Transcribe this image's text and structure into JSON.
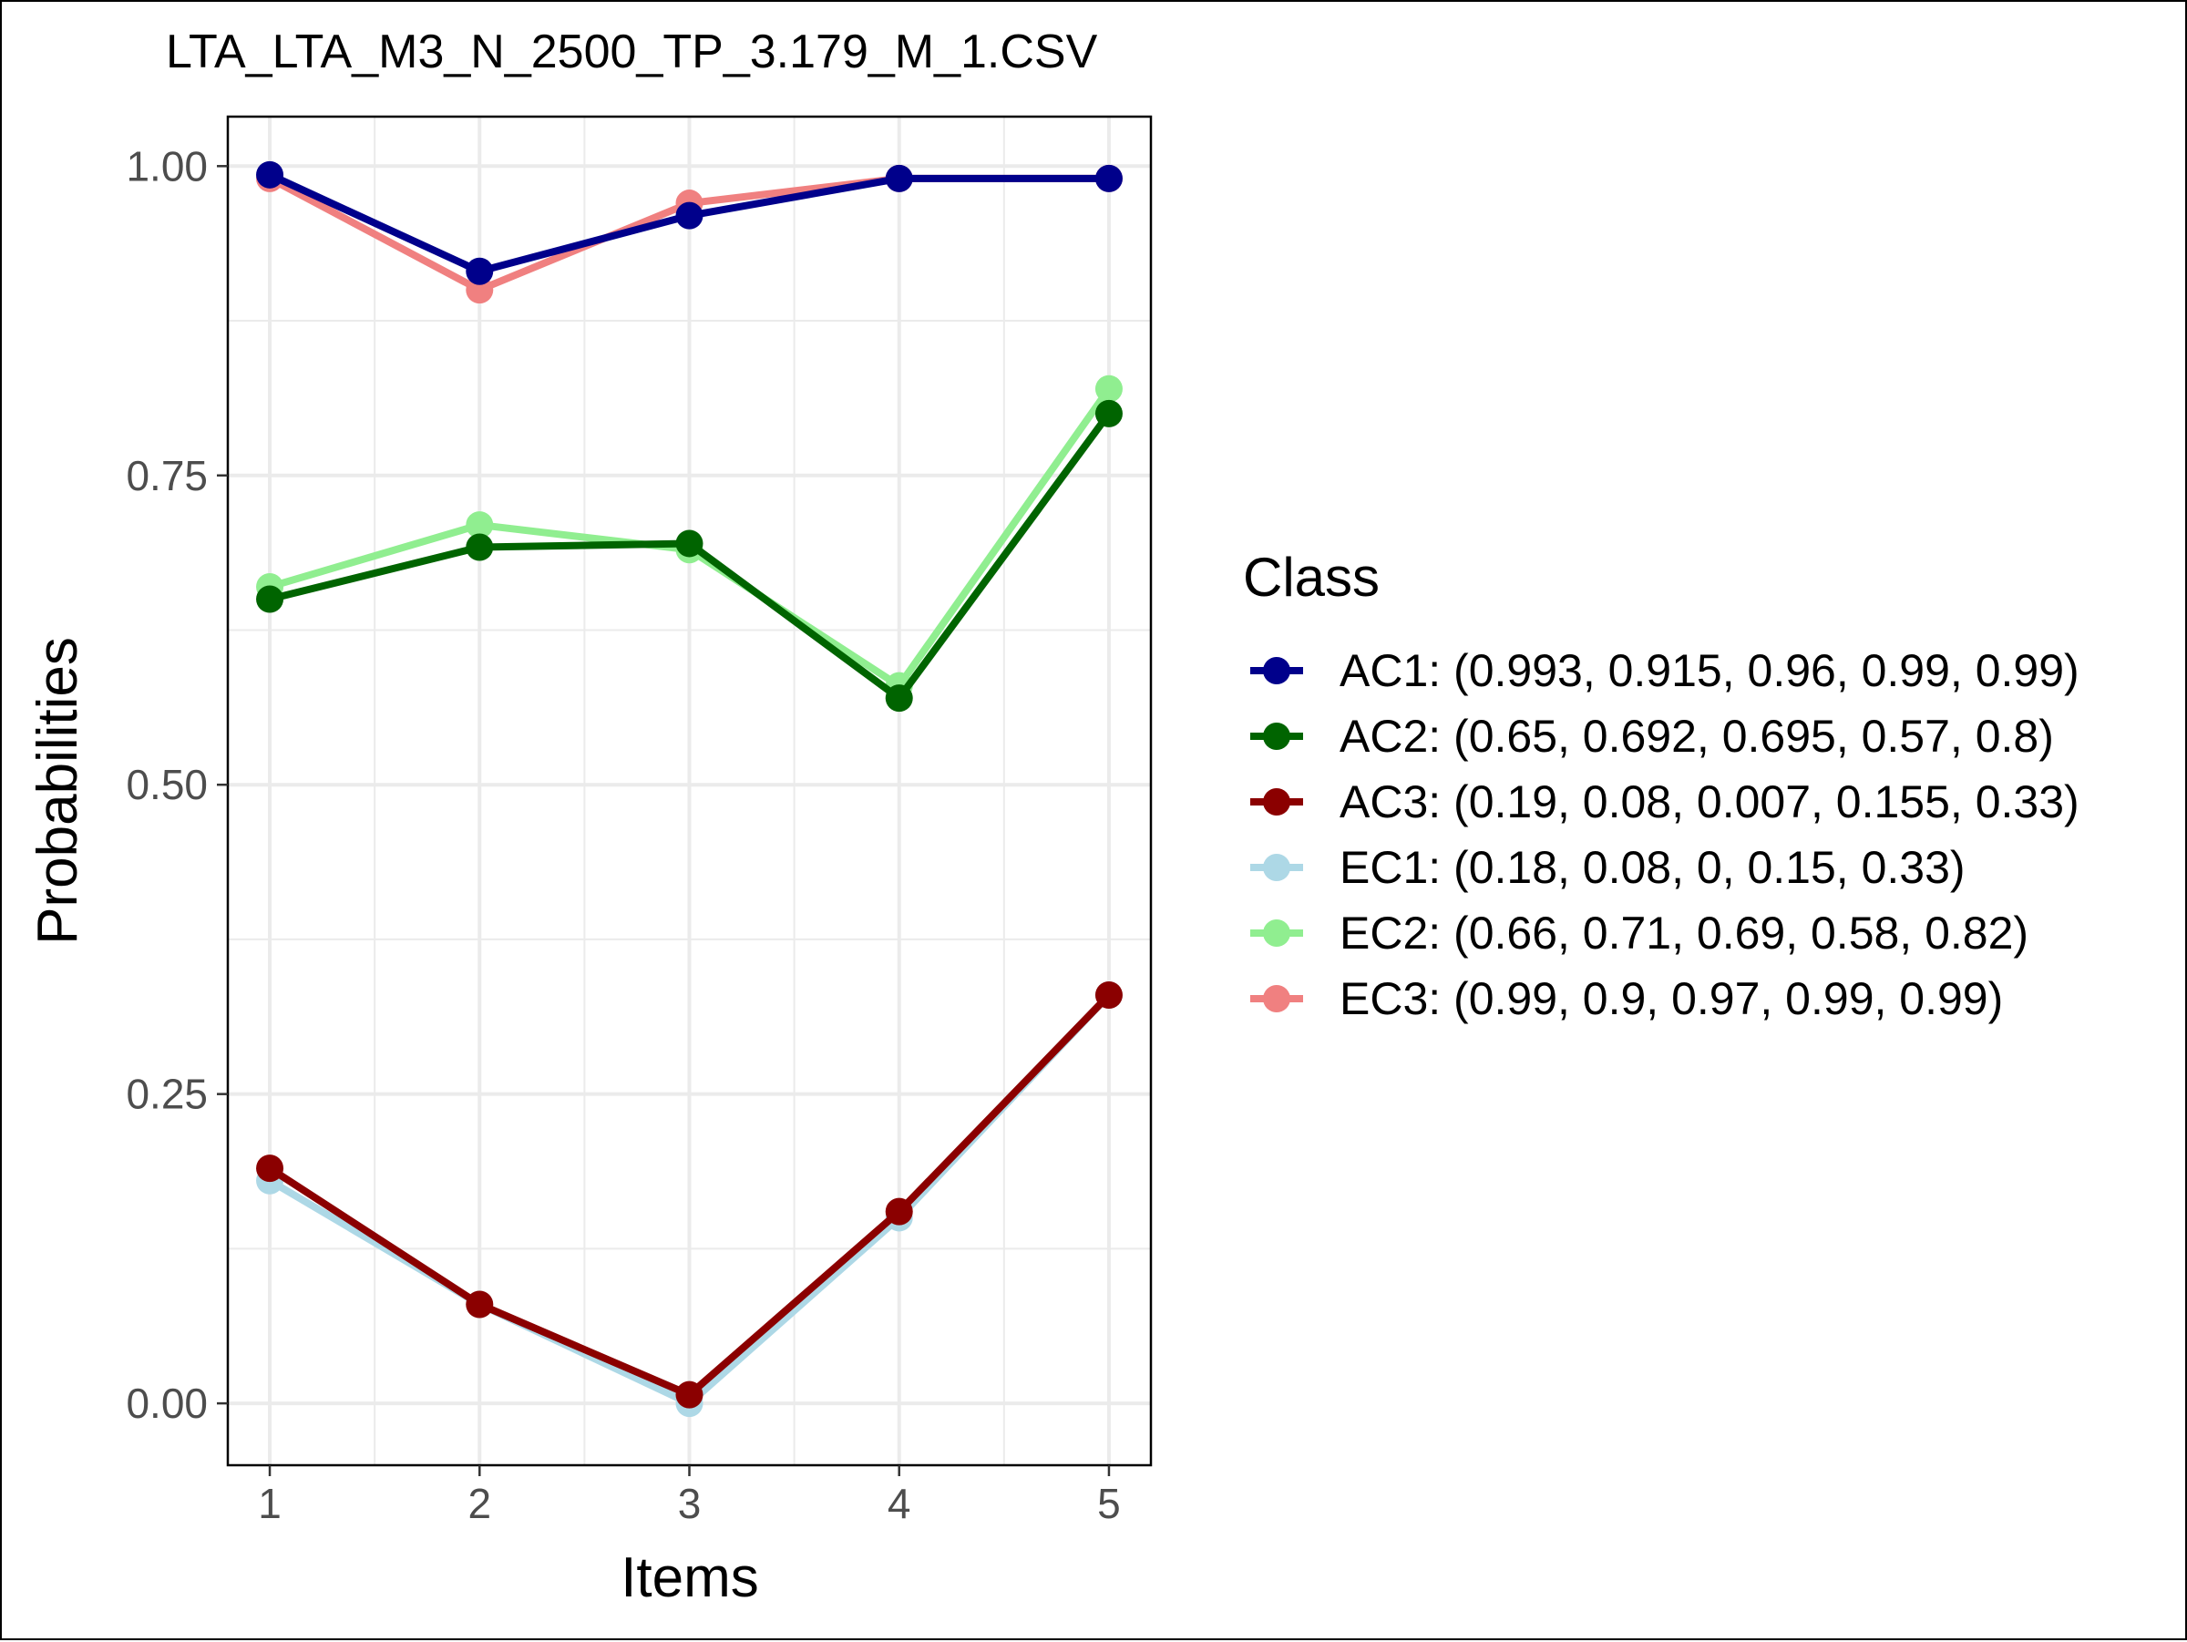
{
  "chart_data": {
    "type": "line",
    "title": "LTA_LTA_M3_N_2500_TP_3.179_M_1.CSV",
    "xlabel": "Items",
    "ylabel": "Probabilities",
    "x": [
      1,
      2,
      3,
      4,
      5
    ],
    "x_ticks": [
      "1",
      "2",
      "3",
      "4",
      "5"
    ],
    "y_ticks": [
      "0.00",
      "0.25",
      "0.50",
      "0.75",
      "1.00"
    ],
    "ylim": [
      -0.05,
      1.04
    ],
    "grid": true,
    "legend_title": "Class",
    "legend_position": "right",
    "series": [
      {
        "name": "AC1",
        "label": "AC1: (0.993, 0.915, 0.96, 0.99, 0.99)",
        "values": [
          0.993,
          0.915,
          0.96,
          0.99,
          0.99
        ],
        "color": "#00008B"
      },
      {
        "name": "AC2",
        "label": "AC2: (0.65, 0.692, 0.695, 0.57, 0.8)",
        "values": [
          0.65,
          0.692,
          0.695,
          0.57,
          0.8
        ],
        "color": "#006400"
      },
      {
        "name": "AC3",
        "label": "AC3: (0.19, 0.08, 0.007, 0.155, 0.33)",
        "values": [
          0.19,
          0.08,
          0.007,
          0.155,
          0.33
        ],
        "color": "#8B0000"
      },
      {
        "name": "EC1",
        "label": "EC1: (0.18, 0.08, 0, 0.15, 0.33)",
        "values": [
          0.18,
          0.08,
          0,
          0.15,
          0.33
        ],
        "color": "#ADD8E6"
      },
      {
        "name": "EC2",
        "label": "EC2: (0.66, 0.71, 0.69, 0.58, 0.82)",
        "values": [
          0.66,
          0.71,
          0.69,
          0.58,
          0.82
        ],
        "color": "#90EE90"
      },
      {
        "name": "EC3",
        "label": "EC3: (0.99, 0.9, 0.97, 0.99, 0.99)",
        "values": [
          0.99,
          0.9,
          0.97,
          0.99,
          0.99
        ],
        "color": "#F08080"
      }
    ],
    "draw_order": [
      "EC1",
      "AC3",
      "EC2",
      "AC2",
      "EC3",
      "AC1"
    ]
  }
}
